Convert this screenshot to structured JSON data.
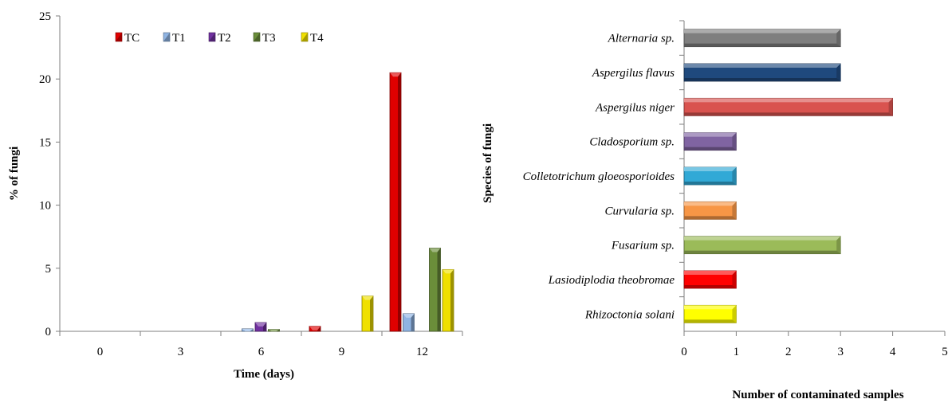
{
  "chart_data": [
    {
      "type": "bar",
      "orientation": "vertical",
      "title": "",
      "xlabel": "Time (days)",
      "ylabel": "% of fungi",
      "categories": [
        "0",
        "3",
        "6",
        "9",
        "12"
      ],
      "ylim": [
        0,
        25
      ],
      "yticks": [
        0,
        5,
        10,
        15,
        20,
        25
      ],
      "legend_position": "top-left",
      "series": [
        {
          "name": "TC",
          "color": "#e00000",
          "values": [
            0,
            0,
            0,
            0.4,
            20.5
          ]
        },
        {
          "name": "T1",
          "color": "#8fb4e3",
          "values": [
            0,
            0,
            0.2,
            0,
            1.4
          ]
        },
        {
          "name": "T2",
          "color": "#7030a0",
          "values": [
            0,
            0,
            0.7,
            0,
            0
          ]
        },
        {
          "name": "T3",
          "color": "#6b8e3a",
          "values": [
            0,
            0,
            0.15,
            0,
            6.6
          ]
        },
        {
          "name": "T4",
          "color": "#f0e000",
          "values": [
            0,
            0,
            0,
            2.8,
            4.9
          ]
        }
      ]
    },
    {
      "type": "bar",
      "orientation": "horizontal",
      "title": "",
      "xlabel": "Number of contaminated samples",
      "ylabel": "Species of fungi",
      "xlim": [
        0,
        5
      ],
      "xticks": [
        0,
        1,
        2,
        3,
        4,
        5
      ],
      "categories": [
        "Alternaria sp.",
        "Aspergilus flavus",
        "Aspergilus niger",
        "Cladosporium sp.",
        "Colletotrichum gloeosporioides",
        "Curvularia sp.",
        "Fusarium sp.",
        "Lasiodiplodia theobromae",
        "Rhizoctonia solani"
      ],
      "values": [
        3,
        3,
        4,
        1,
        1,
        1,
        3,
        1,
        1
      ],
      "colors": [
        "#7f7f7f",
        "#1f497d",
        "#d9534f",
        "#8064a2",
        "#31a9d6",
        "#f79646",
        "#9bbb59",
        "#ff0000",
        "#ffff00"
      ]
    }
  ]
}
